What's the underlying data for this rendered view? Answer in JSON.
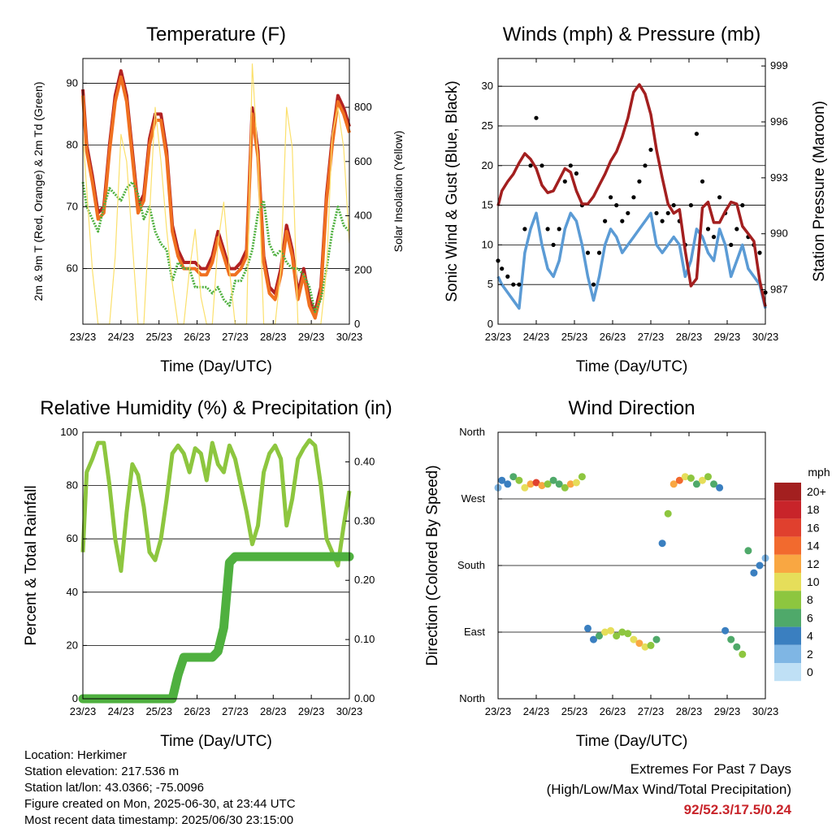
{
  "chart_data": [
    {
      "id": "temperature",
      "type": "line",
      "title": "Temperature (F)",
      "xlabel": "Time (Day/UTC)",
      "ylabel": "2m & 9m T (Red, Orange) & 2m Td (Green)",
      "ylabel_right": "Solar Insolation (Yellow)",
      "ylim": [
        51,
        94
      ],
      "ylim_right": [
        0,
        980
      ],
      "yticks": [
        "60",
        "70",
        "80",
        "90"
      ],
      "yticks_right": [
        "0",
        "200",
        "400",
        "600",
        "800"
      ],
      "xticks": [
        "23/23",
        "24/23",
        "25/23",
        "26/23",
        "27/23",
        "28/23",
        "29/23",
        "30/23"
      ],
      "grid": true,
      "x": [
        0,
        0.1,
        0.25,
        0.4,
        0.55,
        0.7,
        0.85,
        1.0,
        1.15,
        1.3,
        1.45,
        1.6,
        1.75,
        1.9,
        2.05,
        2.2,
        2.35,
        2.5,
        2.65,
        2.8,
        2.95,
        3.1,
        3.25,
        3.4,
        3.55,
        3.7,
        3.85,
        4.0,
        4.15,
        4.3,
        4.45,
        4.6,
        4.75,
        4.9,
        5.05,
        5.2,
        5.35,
        5.5,
        5.65,
        5.8,
        5.95,
        6.1,
        6.25,
        6.4,
        6.55,
        6.7,
        6.85,
        7.0
      ],
      "series": [
        {
          "name": "2m T",
          "color": "#b22222",
          "values": [
            89,
            80,
            75,
            69,
            70,
            80,
            88,
            92,
            88,
            79,
            70,
            72,
            81,
            85,
            85,
            79,
            67,
            63,
            61,
            61,
            61,
            60,
            60,
            62,
            66,
            63,
            60,
            60,
            61,
            63,
            86,
            79,
            62,
            57,
            56,
            60,
            67,
            63,
            56,
            60,
            55,
            53,
            57,
            72,
            81,
            88,
            86,
            83
          ]
        },
        {
          "name": "9m T",
          "color": "#f07020",
          "values": [
            88,
            79,
            74,
            68,
            69,
            79,
            87,
            91,
            87,
            78,
            69,
            71,
            80,
            84,
            84,
            78,
            66,
            62,
            60,
            60,
            60,
            59,
            59,
            61,
            65,
            62,
            59,
            59,
            60,
            62,
            85,
            78,
            61,
            56,
            55,
            59,
            66,
            62,
            55,
            59,
            54,
            52,
            56,
            71,
            80,
            87,
            85,
            82
          ]
        },
        {
          "name": "2m Td",
          "color": "#4fb03f",
          "values": [
            74,
            70,
            68,
            66,
            70,
            73,
            72,
            71,
            73,
            74,
            72,
            68,
            70,
            66,
            64,
            63,
            58,
            61,
            60,
            60,
            57,
            57,
            57,
            56,
            57,
            55,
            54,
            58,
            58,
            60,
            63,
            69,
            71,
            64,
            62,
            63,
            61,
            60,
            60,
            59,
            57,
            53,
            55,
            60,
            66,
            70,
            67,
            66
          ]
        },
        {
          "name": "Solar Insolation",
          "color": "#fbe06c",
          "axis": "right",
          "values": [
            700,
            500,
            200,
            0,
            0,
            0,
            250,
            700,
            600,
            300,
            0,
            0,
            400,
            800,
            600,
            350,
            150,
            0,
            0,
            200,
            350,
            100,
            0,
            0,
            300,
            450,
            200,
            0,
            0,
            0,
            960,
            600,
            0,
            0,
            0,
            200,
            800,
            650,
            0,
            0,
            0,
            0,
            0,
            200,
            700,
            800,
            650,
            300
          ]
        }
      ]
    },
    {
      "id": "winds",
      "type": "scatter",
      "title": "Winds (mph) & Pressure (mb)",
      "xlabel": "Time (Day/UTC)",
      "ylabel": "Sonic Wind & Gust (Blue, Black)",
      "ylabel_right": "Station Pressure (Maroon)",
      "ylim": [
        0,
        33.5
      ],
      "ylim_right": [
        985.15,
        999.4
      ],
      "yticks": [
        "0",
        "5",
        "10",
        "15",
        "20",
        "25",
        "30"
      ],
      "yticks_right": [
        "987",
        "990",
        "993",
        "996",
        "999"
      ],
      "xticks": [
        "23/23",
        "24/23",
        "25/23",
        "26/23",
        "27/23",
        "28/23",
        "29/23",
        "30/23"
      ],
      "grid": true,
      "x": [
        0,
        0.1,
        0.25,
        0.4,
        0.55,
        0.7,
        0.85,
        1.0,
        1.15,
        1.3,
        1.45,
        1.6,
        1.75,
        1.9,
        2.05,
        2.2,
        2.35,
        2.5,
        2.65,
        2.8,
        2.95,
        3.1,
        3.25,
        3.4,
        3.55,
        3.7,
        3.85,
        4.0,
        4.15,
        4.3,
        4.45,
        4.6,
        4.75,
        4.9,
        5.05,
        5.2,
        5.35,
        5.5,
        5.65,
        5.8,
        5.95,
        6.1,
        6.25,
        6.4,
        6.55,
        6.7,
        6.85,
        7.0
      ],
      "series": [
        {
          "name": "Sonic Wind",
          "color": "#5b9bd5",
          "values": [
            6,
            5,
            4,
            3,
            2,
            9,
            12,
            14,
            10,
            7,
            6,
            8,
            12,
            14,
            13,
            10,
            6,
            3,
            6,
            10,
            12,
            11,
            9,
            10,
            11,
            12,
            13,
            14,
            10,
            9,
            10,
            11,
            10,
            6,
            8,
            12,
            11,
            9,
            8,
            12,
            10,
            6,
            8,
            10,
            7,
            6,
            5,
            2
          ]
        },
        {
          "name": "Sonic Gust",
          "color": "#000000",
          "values": [
            8,
            7,
            6,
            5,
            5,
            12,
            20,
            26,
            20,
            12,
            10,
            12,
            18,
            20,
            19,
            15,
            9,
            5,
            9,
            13,
            16,
            15,
            13,
            14,
            16,
            18,
            20,
            22,
            14,
            13,
            14,
            15,
            13,
            10,
            15,
            24,
            18,
            12,
            11,
            16,
            14,
            10,
            12,
            15,
            11,
            10,
            9,
            4
          ]
        },
        {
          "name": "Station Pressure",
          "color": "#a31f1f",
          "axis": "right",
          "values": [
            991.5,
            992.3,
            992.8,
            993.2,
            993.8,
            994.3,
            994.0,
            993.5,
            992.6,
            992.2,
            992.3,
            992.9,
            993.5,
            993.3,
            992.3,
            991.6,
            991.6,
            992.0,
            992.6,
            993.2,
            993.9,
            994.4,
            995.2,
            996.2,
            997.6,
            998.0,
            997.5,
            996.4,
            994.5,
            993.0,
            991.6,
            991.1,
            991.3,
            989.1,
            987.2,
            987.6,
            991.4,
            991.7,
            990.6,
            990.6,
            991.2,
            991.7,
            991.6,
            990.4,
            990.0,
            989.6,
            987.5,
            986.1
          ]
        }
      ]
    },
    {
      "id": "humidity",
      "type": "line",
      "title": "Relative Humidity (%) & Precipitation (in)",
      "xlabel": "Time (Day/UTC)",
      "ylabel": "Percent & Total Rainfall",
      "ylim": [
        0,
        100
      ],
      "ylim_right": [
        0,
        0.45
      ],
      "yticks": [
        "0",
        "20",
        "40",
        "60",
        "80",
        "100"
      ],
      "yticks_right": [
        "0.00",
        "0.10",
        "0.20",
        "0.30",
        "0.40"
      ],
      "xticks": [
        "23/23",
        "24/23",
        "25/23",
        "26/23",
        "27/23",
        "28/23",
        "29/23",
        "30/23"
      ],
      "grid": true,
      "x": [
        0,
        0.1,
        0.25,
        0.4,
        0.55,
        0.7,
        0.85,
        1.0,
        1.15,
        1.3,
        1.45,
        1.6,
        1.75,
        1.9,
        2.05,
        2.2,
        2.35,
        2.5,
        2.65,
        2.8,
        2.95,
        3.1,
        3.25,
        3.4,
        3.55,
        3.7,
        3.85,
        4.0,
        4.15,
        4.3,
        4.45,
        4.6,
        4.75,
        4.9,
        5.05,
        5.2,
        5.35,
        5.5,
        5.65,
        5.8,
        5.95,
        6.1,
        6.25,
        6.4,
        6.55,
        6.7,
        6.85,
        7.0
      ],
      "series": [
        {
          "name": "Relative Humidity",
          "color": "#8dc63f",
          "values": [
            55,
            85,
            90,
            96,
            96,
            80,
            60,
            48,
            70,
            88,
            84,
            72,
            55,
            52,
            60,
            75,
            92,
            95,
            92,
            85,
            94,
            92,
            82,
            96,
            88,
            85,
            95,
            90,
            80,
            70,
            58,
            65,
            85,
            92,
            95,
            90,
            65,
            75,
            90,
            94,
            97,
            95,
            80,
            60,
            55,
            50,
            65,
            78
          ]
        },
        {
          "name": "Total Precipitation",
          "color": "#4fb03f",
          "axis": "right",
          "values": [
            0,
            0,
            0,
            0,
            0,
            0,
            0,
            0,
            0,
            0,
            0,
            0,
            0,
            0,
            0,
            0,
            0,
            0.04,
            0.07,
            0.07,
            0.07,
            0.07,
            0.07,
            0.07,
            0.08,
            0.12,
            0.23,
            0.24,
            0.24,
            0.24,
            0.24,
            0.24,
            0.24,
            0.24,
            0.24,
            0.24,
            0.24,
            0.24,
            0.24,
            0.24,
            0.24,
            0.24,
            0.24,
            0.24,
            0.24,
            0.24,
            0.24,
            0.24
          ]
        }
      ]
    },
    {
      "id": "winddir",
      "type": "scatter",
      "title": "Wind Direction",
      "xlabel": "Time (Day/UTC)",
      "ylabel": "Direction (Colored By Speed)",
      "yticks": [
        "North",
        "East",
        "South",
        "West",
        "North"
      ],
      "ylim_deg": [
        0,
        360
      ],
      "xticks": [
        "23/23",
        "24/23",
        "25/23",
        "26/23",
        "27/23",
        "28/23",
        "29/23",
        "30/23"
      ],
      "grid": true,
      "colorbar_title": "mph",
      "colorbar_labels": [
        "20+",
        "18",
        "16",
        "14",
        "12",
        "10",
        "8",
        "6",
        "4",
        "2",
        "0"
      ],
      "colorbar_colors": [
        "#a31f1f",
        "#c8242a",
        "#e0402e",
        "#f26a2e",
        "#f9a742",
        "#e6de5a",
        "#8dc63f",
        "#4fa96a",
        "#3a7fc0",
        "#7fb6e4",
        "#bfe0f5"
      ],
      "x": [
        0,
        0.1,
        0.25,
        0.4,
        0.55,
        0.7,
        0.85,
        1.0,
        1.15,
        1.3,
        1.45,
        1.6,
        1.75,
        1.9,
        2.05,
        2.2,
        2.35,
        2.5,
        2.65,
        2.8,
        2.95,
        3.1,
        3.25,
        3.4,
        3.55,
        3.7,
        3.85,
        4.0,
        4.15,
        4.3,
        4.45,
        4.6,
        4.75,
        4.9,
        5.05,
        5.2,
        5.35,
        5.5,
        5.65,
        5.8,
        5.95,
        6.1,
        6.25,
        6.4,
        6.55,
        6.7,
        6.85,
        7.0
      ],
      "values": [
        285,
        295,
        290,
        300,
        295,
        285,
        290,
        292,
        288,
        290,
        295,
        290,
        285,
        290,
        292,
        300,
        95,
        80,
        85,
        90,
        92,
        85,
        90,
        88,
        80,
        75,
        70,
        72,
        80,
        210,
        250,
        290,
        295,
        300,
        298,
        290,
        295,
        300,
        290,
        285,
        92,
        80,
        70,
        60,
        200,
        170,
        180,
        190
      ],
      "speeds": [
        3,
        5,
        4,
        6,
        8,
        10,
        13,
        16,
        12,
        8,
        6,
        7,
        9,
        12,
        11,
        8,
        5,
        4,
        7,
        10,
        11,
        9,
        8,
        9,
        10,
        12,
        11,
        9,
        6,
        5,
        8,
        12,
        14,
        10,
        9,
        7,
        10,
        8,
        6,
        4,
        5,
        6,
        7,
        8,
        6,
        5,
        4,
        3
      ]
    }
  ],
  "footer": {
    "location": "Location: Herkimer",
    "elevation": "Station elevation: 217.536 m",
    "latlon": "Station lat/lon: 43.0366; -75.0096",
    "created": "Figure created on Mon, 2025-06-30, at 23:44 UTC",
    "recent": "Most recent data timestamp: 2025/06/30 23:15:00"
  },
  "extremes": {
    "line1": "Extremes For Past 7 Days",
    "line2": "(High/Low/Max Wind/Total Precipitation)",
    "values": "92/52.3/17.5/0.24"
  }
}
